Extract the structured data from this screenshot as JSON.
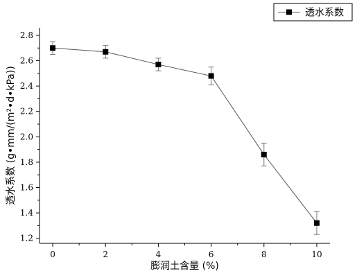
{
  "chart_data": {
    "type": "line",
    "title": "",
    "xlabel": "膨润土含量 (%)",
    "ylabel": "透水系数 (g•mm/(m²•d•kPa))",
    "xlim": [
      -0.5,
      10.5
    ],
    "ylim": [
      1.16,
      2.86
    ],
    "x_ticks": [
      0,
      2,
      4,
      6,
      8,
      10
    ],
    "y_ticks": [
      1.2,
      1.4,
      1.6,
      1.8,
      2.0,
      2.2,
      2.4,
      2.6,
      2.8
    ],
    "x_tick_labels": [
      "0",
      "2",
      "4",
      "6",
      "8",
      "10"
    ],
    "y_tick_labels": [
      "1.2",
      "1.4",
      "1.6",
      "1.8",
      "2.0",
      "2.2",
      "2.4",
      "2.6",
      "2.8"
    ],
    "grid": false,
    "legend_position": "top-right",
    "series": [
      {
        "name": "透水系数",
        "x": [
          0,
          2,
          4,
          6,
          8,
          10
        ],
        "y": [
          2.7,
          2.67,
          2.57,
          2.48,
          1.86,
          1.32
        ],
        "error": [
          0.05,
          0.05,
          0.05,
          0.07,
          0.09,
          0.09
        ],
        "marker": "square",
        "color": "#000000",
        "line_color": "#555555"
      }
    ]
  }
}
